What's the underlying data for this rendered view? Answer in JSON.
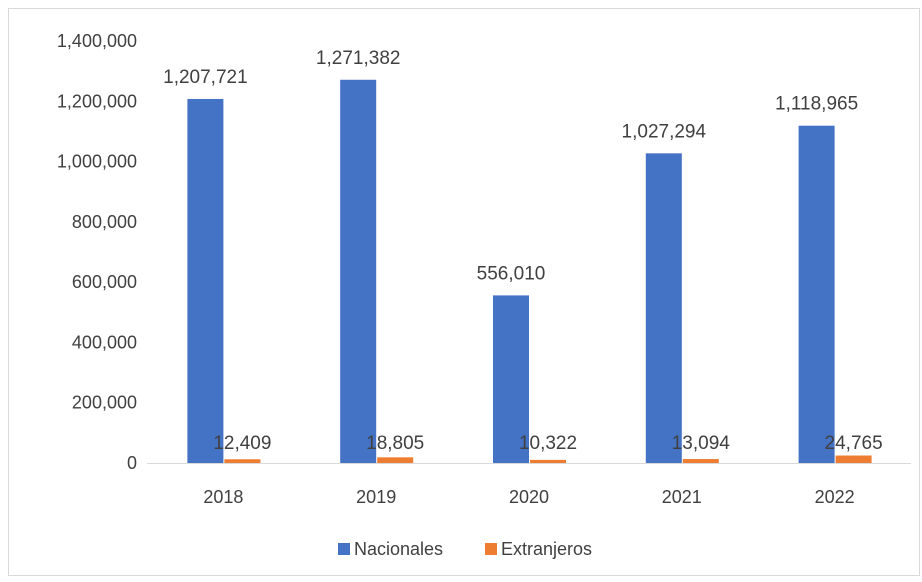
{
  "chart_data": {
    "type": "bar",
    "categories": [
      "2018",
      "2019",
      "2020",
      "2021",
      "2022"
    ],
    "series": [
      {
        "name": "Nacionales",
        "color": "#4472c4",
        "values": [
          1207721,
          1271382,
          556010,
          1027294,
          1118965
        ],
        "labels": [
          "1,207,721",
          "1,271,382",
          "556,010",
          "1,027,294",
          "1,118,965"
        ]
      },
      {
        "name": "Extranjeros",
        "color": "#ed7d31",
        "values": [
          12409,
          18805,
          10322,
          13094,
          24765
        ],
        "labels": [
          "12,409",
          "18,805",
          "10,322",
          "13,094",
          "24,765"
        ]
      }
    ],
    "yticks": [
      0,
      200000,
      400000,
      600000,
      800000,
      1000000,
      1200000,
      1400000
    ],
    "ytick_labels": [
      "0",
      "200,000",
      "400,000",
      "600,000",
      "800,000",
      "1,000,000",
      "1,200,000",
      "1,400,000"
    ],
    "ylim": [
      0,
      1400000
    ],
    "grid": false,
    "legend": "bottom"
  }
}
